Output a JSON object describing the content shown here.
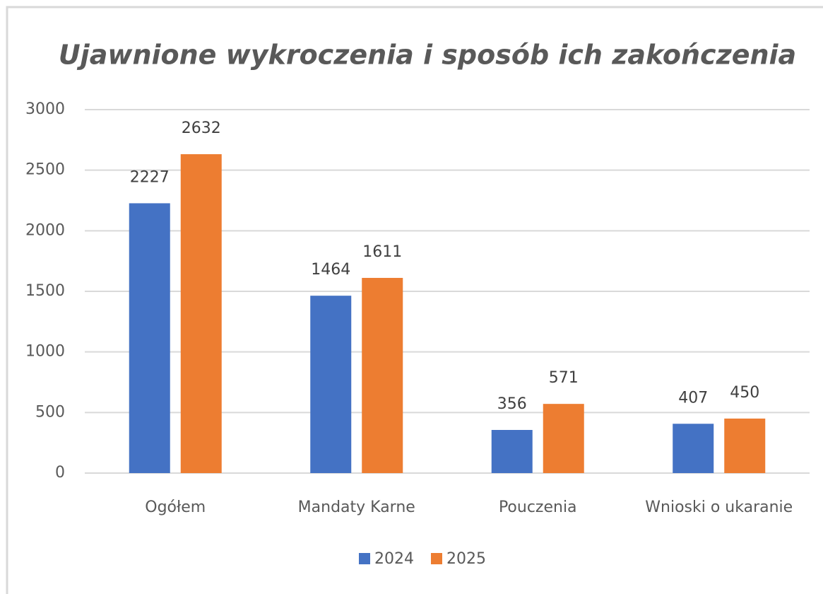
{
  "chart_data": {
    "type": "bar",
    "title": "Ujawnione wykroczenia i sposób ich zakończenia",
    "categories": [
      "Ogółem",
      "Mandaty Karne",
      "Pouczenia",
      "Wnioski o ukaranie"
    ],
    "series": [
      {
        "name": "2024",
        "color": "#4472c4",
        "values": [
          2227,
          1464,
          356,
          407
        ]
      },
      {
        "name": "2025",
        "color": "#ed7d31",
        "values": [
          2632,
          1611,
          571,
          450
        ]
      }
    ],
    "ylim": [
      0,
      3000
    ],
    "yticks": [
      0,
      500,
      1000,
      1500,
      2000,
      2500,
      3000
    ],
    "grid": true,
    "legend": "bottom",
    "data_labels": true
  }
}
